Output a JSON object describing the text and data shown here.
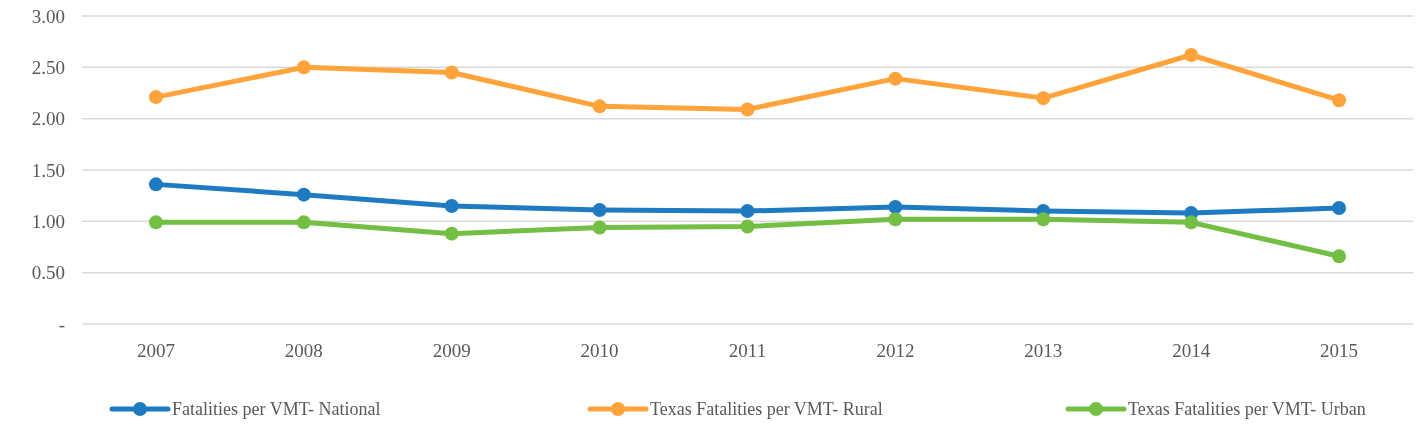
{
  "chart_data": {
    "type": "line",
    "categories": [
      "2007",
      "2008",
      "2009",
      "2010",
      "2011",
      "2012",
      "2013",
      "2014",
      "2015"
    ],
    "series": [
      {
        "name": "Fatalities per VMT- National",
        "color": "#1f7bc1",
        "values": [
          1.36,
          1.26,
          1.15,
          1.11,
          1.1,
          1.14,
          1.1,
          1.08,
          1.13
        ]
      },
      {
        "name": "Texas Fatalities per VMT- Rural",
        "color": "#ffa33a",
        "values": [
          2.21,
          2.5,
          2.45,
          2.12,
          2.09,
          2.39,
          2.2,
          2.62,
          2.18
        ]
      },
      {
        "name": "Texas Fatalities per VMT- Urban",
        "color": "#72bf44",
        "values": [
          0.99,
          0.99,
          0.88,
          0.94,
          0.95,
          1.02,
          1.02,
          0.99,
          0.66
        ]
      }
    ],
    "ylim": [
      0,
      3
    ],
    "yticks": [
      {
        "value": 0,
        "label": "-"
      },
      {
        "value": 0.5,
        "label": "0.50"
      },
      {
        "value": 1,
        "label": "1.00"
      },
      {
        "value": 1.5,
        "label": "1.50"
      },
      {
        "value": 2,
        "label": "2.00"
      },
      {
        "value": 2.5,
        "label": "2.50"
      },
      {
        "value": 3,
        "label": "3.00"
      }
    ],
    "grid": "y",
    "legend": "bottom",
    "marker": "circle",
    "line_style": "solid"
  }
}
